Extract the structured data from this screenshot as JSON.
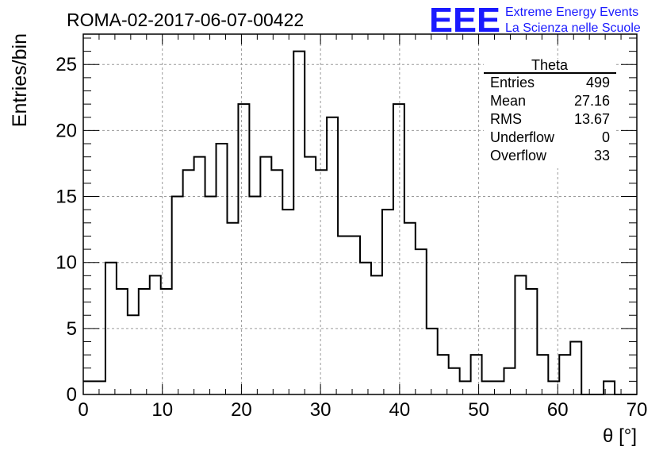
{
  "run_title": "ROMA-02-2017-06-07-00422",
  "logo": {
    "mark": "EEE",
    "line1": "Extreme Energy Events",
    "line2": "La Scienza nelle Scuole",
    "color": "#1a1aff"
  },
  "stats": {
    "title": "Theta",
    "rows": [
      {
        "label": "Entries",
        "value": "499"
      },
      {
        "label": "Mean",
        "value": "27.16"
      },
      {
        "label": "RMS",
        "value": "13.67"
      },
      {
        "label": "Underflow",
        "value": "0"
      },
      {
        "label": "Overflow",
        "value": "33"
      }
    ]
  },
  "chart_data": {
    "type": "histogram",
    "title": "ROMA-02-2017-06-07-00422",
    "xlabel": "θ [°]",
    "ylabel": "Entries/bin",
    "xlim": [
      0,
      70
    ],
    "ylim": [
      0,
      27.3
    ],
    "bin_width": 1.4,
    "bin_edges_start": 0,
    "xticks": [
      "0",
      "10",
      "20",
      "30",
      "40",
      "50",
      "60",
      "70"
    ],
    "yticks": [
      "0",
      "5",
      "10",
      "15",
      "20",
      "25"
    ],
    "xtick_values": [
      0,
      10,
      20,
      30,
      40,
      50,
      60,
      70
    ],
    "ytick_values": [
      0,
      5,
      10,
      15,
      20,
      25
    ],
    "grid": true,
    "line_color": "#000000",
    "values": [
      1,
      1,
      10,
      8,
      6,
      8,
      9,
      8,
      15,
      17,
      18,
      15,
      19,
      13,
      22,
      15,
      18,
      17,
      14,
      26,
      18,
      17,
      21,
      12,
      12,
      10,
      9,
      14,
      22,
      13,
      11,
      5,
      3,
      2,
      1,
      3,
      1,
      1,
      2,
      9,
      8,
      3,
      1,
      3,
      4,
      0,
      0,
      1,
      0,
      0
    ]
  }
}
